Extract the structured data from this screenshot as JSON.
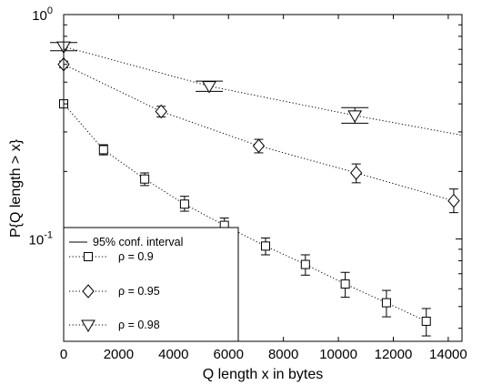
{
  "chart_data": {
    "type": "scatter",
    "xlabel": "Q length x in bytes",
    "ylabel": "P{Q length > x}",
    "xlim": [
      0,
      14500
    ],
    "ylim": [
      0.035,
      1.0
    ],
    "y_scale": "log",
    "grid": false,
    "legend_position": "bottom-left",
    "x_ticks": [
      0,
      2000,
      4000,
      6000,
      8000,
      10000,
      12000,
      14000
    ],
    "x_tick_labels": [
      "0",
      "2000",
      "4000",
      "6000",
      "8000",
      "10000",
      "12000",
      "14000"
    ],
    "y_ticks": [
      {
        "value": 0.1,
        "base": "10",
        "exp": "-1"
      },
      {
        "value": 1.0,
        "base": "10",
        "exp": "0"
      }
    ],
    "y_minor_ticks": [
      0.04,
      0.05,
      0.06,
      0.07,
      0.08,
      0.09,
      0.2,
      0.3,
      0.4,
      0.5,
      0.6,
      0.7,
      0.8,
      0.9
    ],
    "ci_legend_label": "95% conf. interval",
    "series": [
      {
        "name": "ρ = 0.9",
        "marker": "square",
        "x": [
          0,
          1450,
          2950,
          4400,
          5850,
          7350,
          8800,
          10250,
          11750,
          13200
        ],
        "y": [
          0.4,
          0.25,
          0.185,
          0.143,
          0.115,
          0.093,
          0.077,
          0.063,
          0.052,
          0.043
        ],
        "ci_low": [
          0.385,
          0.237,
          0.173,
          0.133,
          0.106,
          0.085,
          0.069,
          0.055,
          0.045,
          0.037
        ],
        "ci_high": [
          0.415,
          0.263,
          0.197,
          0.155,
          0.124,
          0.101,
          0.085,
          0.071,
          0.059,
          0.049
        ],
        "fit_x": [
          0,
          1450,
          2950,
          4400,
          5850,
          7350,
          8800,
          10250,
          11750,
          13200
        ],
        "fit_y": [
          0.4,
          0.25,
          0.185,
          0.143,
          0.115,
          0.093,
          0.077,
          0.063,
          0.052,
          0.043
        ]
      },
      {
        "name": "ρ = 0.95",
        "marker": "diamond",
        "x": [
          0,
          3550,
          7100,
          10650,
          14200
        ],
        "y": [
          0.6,
          0.37,
          0.26,
          0.197,
          0.148
        ],
        "ci_low": [
          0.58,
          0.35,
          0.242,
          0.178,
          0.131
        ],
        "ci_high": [
          0.62,
          0.39,
          0.278,
          0.216,
          0.167
        ],
        "fit_x": [
          0,
          3550,
          7100,
          10650,
          14200
        ],
        "fit_y": [
          0.6,
          0.37,
          0.26,
          0.197,
          0.148
        ]
      },
      {
        "name": "ρ = 0.98",
        "marker": "triangle-down",
        "x": [
          0,
          5300,
          10600
        ],
        "y": [
          0.72,
          0.48,
          0.355
        ],
        "ci_low": [
          0.69,
          0.455,
          0.328
        ],
        "ci_high": [
          0.75,
          0.505,
          0.385
        ],
        "fit_x": [
          0,
          5300,
          10600,
          14500
        ],
        "fit_y": [
          0.72,
          0.48,
          0.355,
          0.29
        ]
      }
    ]
  }
}
